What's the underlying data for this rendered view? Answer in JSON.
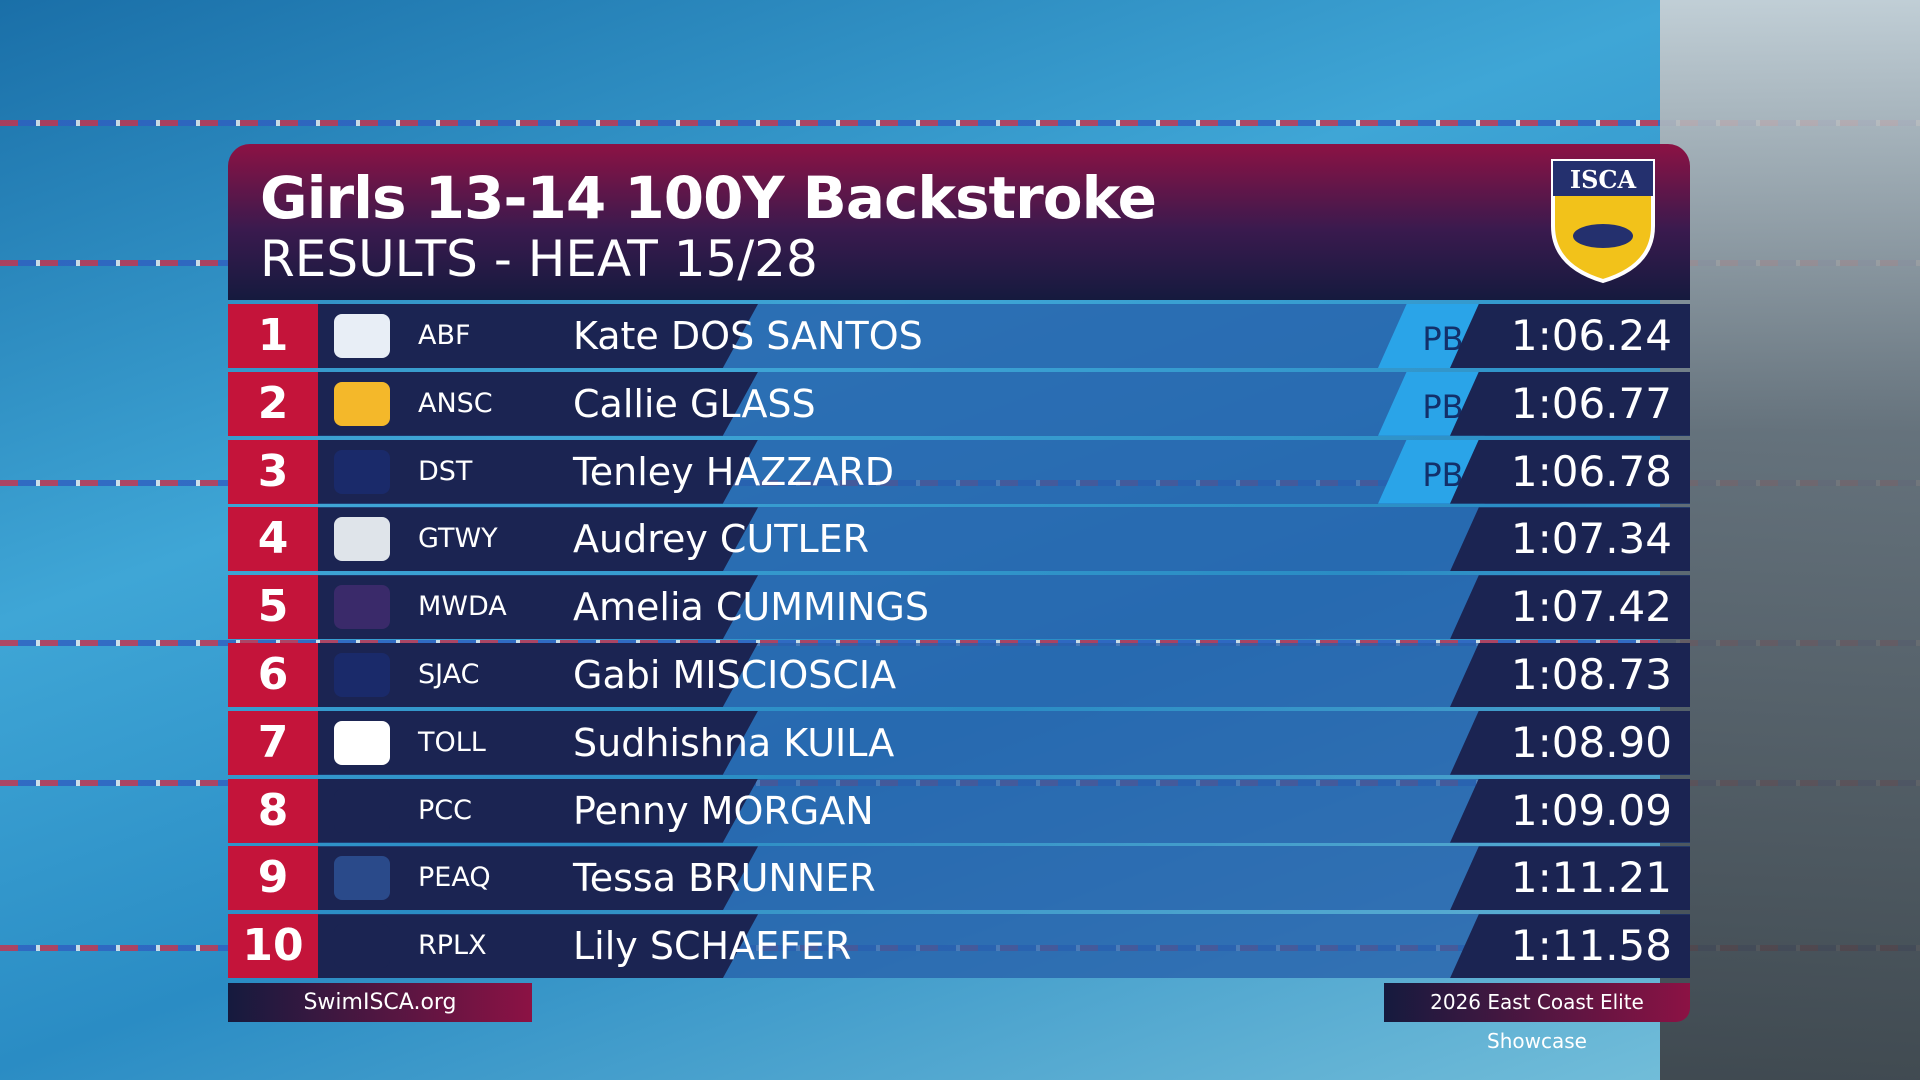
{
  "header": {
    "title": "Girls 13-14 100Y Backstroke",
    "subtitle": "RESULTS - HEAT 15/28",
    "logo": "ISCA"
  },
  "rows": [
    {
      "place": "1",
      "team": "ABF",
      "name": "Kate DOS SANTOS",
      "pb": "PB",
      "time": "1:06.24"
    },
    {
      "place": "2",
      "team": "ANSC",
      "name": "Callie GLASS",
      "pb": "PB",
      "time": "1:06.77"
    },
    {
      "place": "3",
      "team": "DST",
      "name": "Tenley HAZZARD",
      "pb": "PB",
      "time": "1:06.78"
    },
    {
      "place": "4",
      "team": "GTWY",
      "name": "Audrey CUTLER",
      "time": "1:07.34"
    },
    {
      "place": "5",
      "team": "MWDA",
      "name": "Amelia CUMMINGS",
      "time": "1:07.42"
    },
    {
      "place": "6",
      "team": "SJAC",
      "name": "Gabi MISCIOSCIA",
      "time": "1:08.73"
    },
    {
      "place": "7",
      "team": "TOLL",
      "name": "Sudhishna KUILA",
      "time": "1:08.90"
    },
    {
      "place": "8",
      "team": "PCC",
      "name": "Penny MORGAN",
      "time": "1:09.09"
    },
    {
      "place": "9",
      "team": "PEAQ",
      "name": "Tessa BRUNNER",
      "time": "1:11.21"
    },
    {
      "place": "10",
      "team": "RPLX",
      "name": "Lily SCHAEFER",
      "time": "1:11.58"
    }
  ],
  "footer": {
    "left": "SwimISCA.org",
    "right": "2026 East Coast Elite Showcase"
  }
}
